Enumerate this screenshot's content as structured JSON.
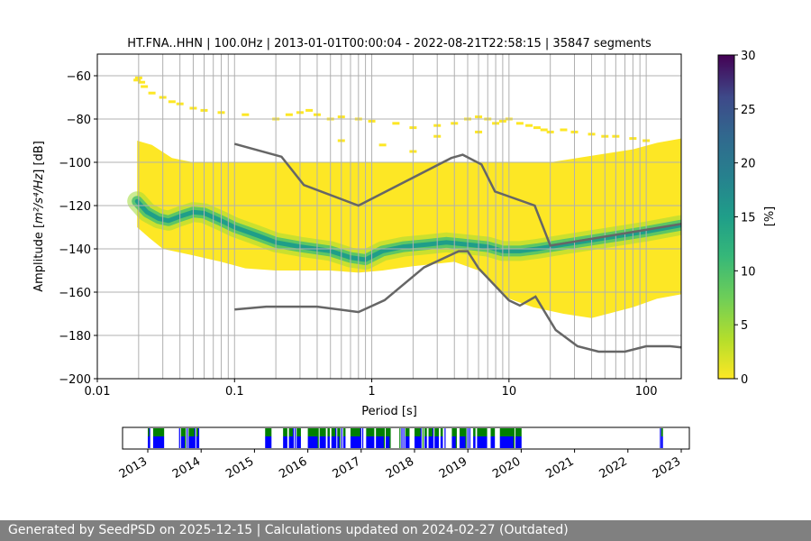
{
  "chart_data": {
    "type": "heatmap",
    "title": "HT.FNA..HHN | 100.0Hz | 2013-01-01T00:00:04 - 2022-08-21T22:58:15 | 35847 segments",
    "xlabel": "Period [s]",
    "ylabel_prefix": "Amplitude [",
    "ylabel_math": "m²/s⁴/Hz",
    "ylabel_suffix": "] [dB]",
    "x_scale": "log",
    "xlim": [
      0.01,
      180
    ],
    "ylim": [
      -200,
      -50
    ],
    "x_ticks": [
      {
        "value": 0.01,
        "label": "0.01"
      },
      {
        "value": 0.1,
        "label": "0.1"
      },
      {
        "value": 1,
        "label": "1"
      },
      {
        "value": 10,
        "label": "10"
      },
      {
        "value": 100,
        "label": "100"
      }
    ],
    "y_ticks": [
      {
        "value": -60,
        "label": "−60"
      },
      {
        "value": -80,
        "label": "−80"
      },
      {
        "value": -100,
        "label": "−100"
      },
      {
        "value": -120,
        "label": "−120"
      },
      {
        "value": -140,
        "label": "−140"
      },
      {
        "value": -160,
        "label": "−160"
      },
      {
        "value": -180,
        "label": "−180"
      },
      {
        "value": -200,
        "label": "−200"
      }
    ],
    "colorbar": {
      "label": "[%]",
      "range": [
        0,
        30
      ],
      "ticks": [
        {
          "value": 0,
          "label": "0"
        },
        {
          "value": 5,
          "label": "5"
        },
        {
          "value": 10,
          "label": "10"
        },
        {
          "value": 15,
          "label": "15"
        },
        {
          "value": 20,
          "label": "20"
        },
        {
          "value": 25,
          "label": "25"
        },
        {
          "value": 30,
          "label": "30"
        }
      ]
    },
    "mode_curve": [
      [
        0.0195,
        -118
      ],
      [
        0.023,
        -123
      ],
      [
        0.028,
        -126
      ],
      [
        0.033,
        -127
      ],
      [
        0.04,
        -125
      ],
      [
        0.05,
        -123
      ],
      [
        0.06,
        -123.5
      ],
      [
        0.08,
        -127
      ],
      [
        0.1,
        -130
      ],
      [
        0.15,
        -134
      ],
      [
        0.2,
        -137
      ],
      [
        0.3,
        -139
      ],
      [
        0.5,
        -141
      ],
      [
        0.7,
        -144
      ],
      [
        0.9,
        -145
      ],
      [
        1.2,
        -141
      ],
      [
        1.7,
        -139
      ],
      [
        2.5,
        -138
      ],
      [
        3.5,
        -137
      ],
      [
        5,
        -138
      ],
      [
        7,
        -139
      ],
      [
        9,
        -141
      ],
      [
        12,
        -141
      ],
      [
        16,
        -140
      ],
      [
        25,
        -138
      ],
      [
        50,
        -135
      ],
      [
        100,
        -132
      ],
      [
        180,
        -129
      ]
    ],
    "band_upper": [
      [
        0.0195,
        -90
      ],
      [
        0.025,
        -92
      ],
      [
        0.035,
        -98
      ],
      [
        0.05,
        -100
      ],
      [
        0.1,
        -100
      ],
      [
        0.2,
        -100
      ],
      [
        0.5,
        -100
      ],
      [
        1,
        -100
      ],
      [
        2,
        -100
      ],
      [
        5,
        -100
      ],
      [
        10,
        -100
      ],
      [
        20,
        -100
      ],
      [
        40,
        -97
      ],
      [
        80,
        -94
      ],
      [
        120,
        -91
      ],
      [
        180,
        -89
      ]
    ],
    "band_lower": [
      [
        0.0195,
        -130
      ],
      [
        0.024,
        -135
      ],
      [
        0.03,
        -140
      ],
      [
        0.05,
        -143
      ],
      [
        0.08,
        -146
      ],
      [
        0.12,
        -149
      ],
      [
        0.2,
        -150
      ],
      [
        0.5,
        -150
      ],
      [
        0.8,
        -151
      ],
      [
        1.2,
        -150
      ],
      [
        2,
        -148
      ],
      [
        4,
        -146
      ],
      [
        6,
        -150
      ],
      [
        8,
        -157
      ],
      [
        10,
        -163
      ],
      [
        15,
        -167
      ],
      [
        25,
        -170
      ],
      [
        40,
        -172
      ],
      [
        80,
        -167
      ],
      [
        120,
        -163
      ],
      [
        180,
        -161
      ]
    ],
    "nlnm": [
      [
        0.1,
        -168
      ],
      [
        0.17,
        -166.7
      ],
      [
        0.4,
        -166.7
      ],
      [
        0.8,
        -169.2
      ],
      [
        1.24,
        -163.7
      ],
      [
        2.4,
        -148.6
      ],
      [
        4.3,
        -141.1
      ],
      [
        5.0,
        -141.1
      ],
      [
        6.0,
        -149
      ],
      [
        10,
        -163.8
      ],
      [
        12,
        -166.2
      ],
      [
        15.6,
        -162.1
      ],
      [
        21.9,
        -177.5
      ],
      [
        31.6,
        -185
      ],
      [
        45,
        -187.5
      ],
      [
        70,
        -187.5
      ],
      [
        100,
        -185
      ],
      [
        150,
        -185
      ],
      [
        180,
        -185.5
      ]
    ],
    "nhnm": [
      [
        0.1,
        -91.5
      ],
      [
        0.22,
        -97.4
      ],
      [
        0.32,
        -110.5
      ],
      [
        0.8,
        -120
      ],
      [
        3.8,
        -98
      ],
      [
        4.6,
        -96.5
      ],
      [
        6.3,
        -101
      ],
      [
        7.9,
        -113.5
      ],
      [
        15.4,
        -120
      ],
      [
        20,
        -138.5
      ],
      [
        180,
        -128.5
      ]
    ],
    "sparse_outliers": [
      [
        0.0195,
        -62
      ],
      [
        0.02,
        -61
      ],
      [
        0.021,
        -63
      ],
      [
        0.022,
        -65
      ],
      [
        0.025,
        -68
      ],
      [
        0.03,
        -70
      ],
      [
        0.035,
        -72
      ],
      [
        0.04,
        -73
      ],
      [
        0.05,
        -75
      ],
      [
        0.06,
        -76
      ],
      [
        0.08,
        -77
      ],
      [
        0.12,
        -78
      ],
      [
        0.2,
        -80
      ],
      [
        0.25,
        -78
      ],
      [
        0.3,
        -77
      ],
      [
        0.35,
        -76
      ],
      [
        0.4,
        -78
      ],
      [
        0.5,
        -80
      ],
      [
        0.6,
        -79
      ],
      [
        0.8,
        -80
      ],
      [
        1.0,
        -81
      ],
      [
        1.5,
        -82
      ],
      [
        2.0,
        -84
      ],
      [
        3.0,
        -83
      ],
      [
        4.0,
        -82
      ],
      [
        5.0,
        -80
      ],
      [
        6.0,
        -79
      ],
      [
        7.0,
        -80
      ],
      [
        8.0,
        -82
      ],
      [
        9.0,
        -81
      ],
      [
        10.0,
        -80
      ],
      [
        12.0,
        -82
      ],
      [
        14.0,
        -83
      ],
      [
        16.0,
        -84
      ],
      [
        18.0,
        -85
      ],
      [
        20.0,
        -86
      ],
      [
        25.0,
        -85
      ],
      [
        30.0,
        -86
      ],
      [
        40.0,
        -87
      ],
      [
        50.0,
        -88
      ],
      [
        60.0,
        -88
      ],
      [
        80.0,
        -89
      ],
      [
        100.0,
        -90
      ],
      [
        0.6,
        -90
      ],
      [
        1.2,
        -92
      ],
      [
        3.0,
        -88
      ],
      [
        6.0,
        -86
      ],
      [
        2.0,
        -95
      ]
    ],
    "grid": true,
    "vertical_gridlines": [
      0.02,
      0.03,
      0.04,
      0.05,
      0.06,
      0.07,
      0.08,
      0.09,
      0.1,
      0.2,
      0.3,
      0.4,
      0.5,
      0.6,
      0.7,
      0.8,
      0.9,
      1,
      2,
      3,
      4,
      5,
      6,
      7,
      8,
      9,
      10,
      20,
      30,
      40,
      50,
      60,
      70,
      80,
      90,
      100
    ]
  },
  "timeline": {
    "years": [
      "2013",
      "2014",
      "2015",
      "2016",
      "2017",
      "2018",
      "2019",
      "2020",
      "2021",
      "2022",
      "2023"
    ],
    "colors": {
      "present": "#0000ff",
      "gaps": "#008000"
    }
  },
  "footer": {
    "text": "Generated by SeedPSD on 2025-12-15 | Calculations updated on 2024-02-27 (Outdated)"
  }
}
